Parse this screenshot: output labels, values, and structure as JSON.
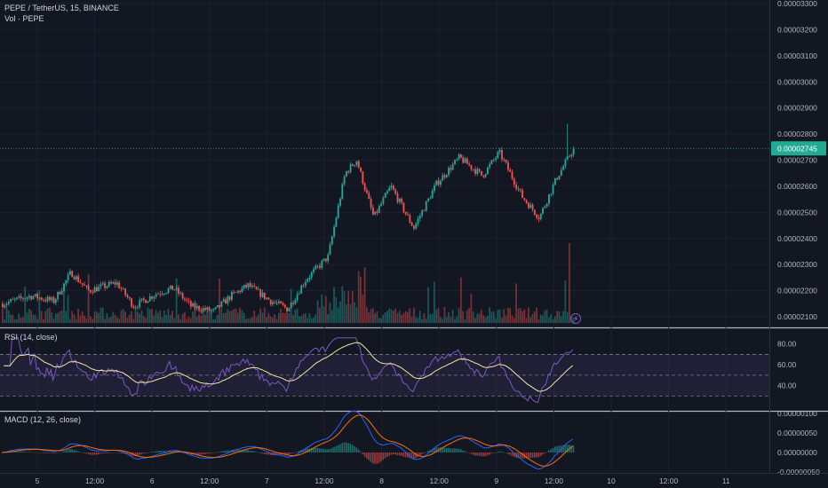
{
  "header": {
    "symbol_line": "PEPE / TetherUS, 15, BINANCE",
    "volume_line": "Vol · PEPE"
  },
  "price_panel": {
    "y_ticks": [
      "0.00003300",
      "0.00003200",
      "0.00003100",
      "0.00003000",
      "0.00002900",
      "0.00002800",
      "0.00002700",
      "0.00002600",
      "0.00002500",
      "0.00002400",
      "0.00002300",
      "0.00002200",
      "0.00002100"
    ],
    "last_price_label": "0.00002745",
    "colors": {
      "up": "#26a69a",
      "down": "#ef5350",
      "last": "#22ab94"
    }
  },
  "rsi_panel": {
    "label": "RSI (14, close)",
    "y_ticks": [
      "80.00",
      "60.00",
      "40.00"
    ],
    "colors": {
      "rsi": "#7e57c2",
      "ma": "#f2e6a1"
    }
  },
  "macd_panel": {
    "label": "MACD (12, 26, close)",
    "y_ticks": [
      "0.00000100",
      "0.00000050",
      "0.00000000",
      "-0.00000050"
    ],
    "colors": {
      "macd": "#2962ff",
      "signal": "#ff6d00"
    }
  },
  "time_axis": {
    "labels": [
      "5",
      "12:00",
      "6",
      "12:00",
      "7",
      "12:00",
      "8",
      "12:00",
      "9",
      "12:00",
      "10",
      "12:00",
      "11"
    ]
  },
  "chart_data": {
    "type": "candlestick",
    "symbol": "PEPE/USDT",
    "interval": "15",
    "exchange": "BINANCE",
    "price_range": [
      2.1e-05,
      3.3e-05
    ],
    "last_price": 2.745e-05,
    "price_path": [
      [
        0,
        2.15e-05
      ],
      [
        0.05,
        2.18e-05
      ],
      [
        0.09,
        2.16e-05
      ],
      [
        0.12,
        2.27e-05
      ],
      [
        0.15,
        2.2e-05
      ],
      [
        0.2,
        2.23e-05
      ],
      [
        0.23,
        2.14e-05
      ],
      [
        0.27,
        2.19e-05
      ],
      [
        0.3,
        2.21e-05
      ],
      [
        0.33,
        2.14e-05
      ],
      [
        0.37,
        2.12e-05
      ],
      [
        0.4,
        2.18e-05
      ],
      [
        0.43,
        2.22e-05
      ],
      [
        0.47,
        2.16e-05
      ],
      [
        0.5,
        2.13e-05
      ],
      [
        0.53,
        2.24e-05
      ],
      [
        0.57,
        2.33e-05
      ],
      [
        0.6,
        2.65e-05
      ],
      [
        0.62,
        2.7e-05
      ],
      [
        0.65,
        2.48e-05
      ],
      [
        0.68,
        2.6e-05
      ],
      [
        0.72,
        2.44e-05
      ],
      [
        0.76,
        2.61e-05
      ],
      [
        0.8,
        2.71e-05
      ],
      [
        0.84,
        2.64e-05
      ],
      [
        0.87,
        2.73e-05
      ],
      [
        0.91,
        2.56e-05
      ],
      [
        0.94,
        2.48e-05
      ],
      [
        0.97,
        2.63e-05
      ],
      [
        1.0,
        2.745e-05
      ]
    ],
    "rsi_range": [
      20,
      90
    ],
    "rsi_levels": [
      70,
      50,
      30
    ],
    "macd_range": [
      -5e-07,
      1e-06
    ]
  }
}
